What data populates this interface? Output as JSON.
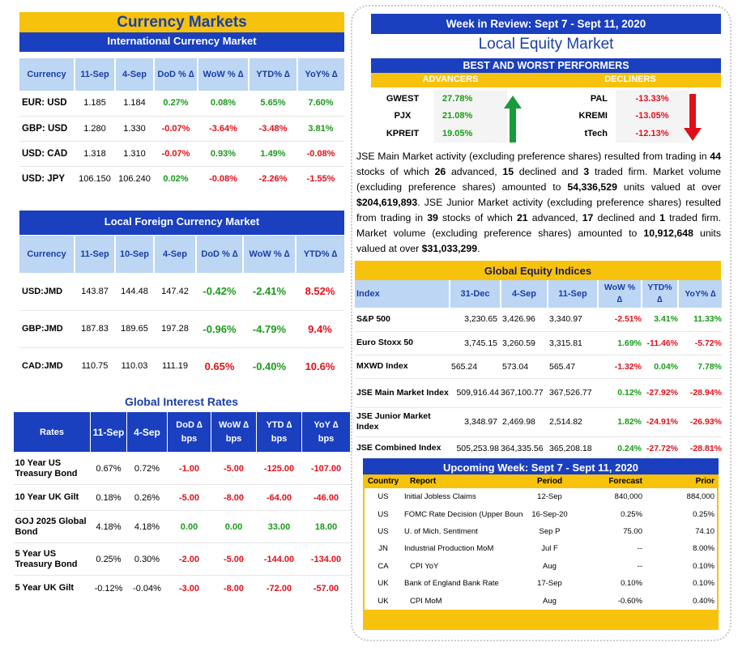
{
  "currency_markets": {
    "title": "Currency Markets",
    "international": {
      "title": "International Currency Market",
      "headers": [
        "Currency",
        "11-Sep",
        "4-Sep",
        "DoD % ∆",
        "WoW % ∆",
        "YTD% ∆",
        "YoY% ∆"
      ],
      "rows": [
        [
          "EUR: USD",
          "1.185",
          "1.184",
          "0.27%",
          "0.08%",
          "5.65%",
          "7.60%"
        ],
        [
          "GBP: USD",
          "1.280",
          "1.330",
          "-0.07%",
          "-3.64%",
          "-3.48%",
          "3.81%"
        ],
        [
          "USD: CAD",
          "1.318",
          "1.310",
          "-0.07%",
          "0.93%",
          "1.49%",
          "-0.08%"
        ],
        [
          "USD: JPY",
          "106.150",
          "106.240",
          "0.02%",
          "-0.08%",
          "-2.26%",
          "-1.55%"
        ]
      ]
    },
    "local_fx": {
      "title": "Local Foreign Currency Market",
      "headers": [
        "Currency",
        "11-Sep",
        "10-Sep",
        "4-Sep",
        "DoD % ∆",
        "WoW % ∆",
        "YTD% ∆"
      ],
      "rows": [
        [
          "USD:JMD",
          "143.87",
          "144.48",
          "147.42",
          "-0.42%",
          "-2.41%",
          "8.52%"
        ],
        [
          "GBP:JMD",
          "187.83",
          "189.65",
          "197.28",
          "-0.96%",
          "-4.79%",
          "9.4%"
        ],
        [
          "CAD:JMD",
          "110.75",
          "110.03",
          "111.19",
          "0.65%",
          "-0.40%",
          "10.6%"
        ]
      ]
    }
  },
  "interest_rates": {
    "title": "Global Interest Rates",
    "headers": [
      "Rates",
      "11-Sep",
      "4-Sep",
      "DoD ∆ bps",
      "WoW ∆ bps",
      "YTD ∆ bps",
      "YoY ∆ bps"
    ],
    "rows": [
      [
        "10 Year US Treasury Bond",
        "0.67%",
        "0.72%",
        "-1.00",
        "-5.00",
        "-125.00",
        "-107.00"
      ],
      [
        "10 Year UK Gilt",
        "0.18%",
        "0.26%",
        "-5.00",
        "-8.00",
        "-64.00",
        "-46.00"
      ],
      [
        "GOJ 2025 Global Bond",
        "4.18%",
        "4.18%",
        "0.00",
        "0.00",
        "33.00",
        "18.00"
      ],
      [
        "5 Year US Treasury Bond",
        "0.25%",
        "0.30%",
        "-2.00",
        "-5.00",
        "-144.00",
        "-134.00"
      ],
      [
        "5 Year UK Gilt",
        "-0.12%",
        "-0.04%",
        "-3.00",
        "-8.00",
        "-72.00",
        "-57.00"
      ]
    ]
  },
  "week_review": {
    "title": "Week in Review:  Sept 7 - Sept 11, 2020",
    "local_equity_title": "Local Equity Market",
    "performers_title": "BEST AND WORST PERFORMERS",
    "advancers_label": "ADVANCERS",
    "decliners_label": "DECLINERS",
    "performers": [
      {
        "adv": "GWEST",
        "adv_pct": "27.78%",
        "dec": "PAL",
        "dec_pct": "-13.33%"
      },
      {
        "adv": "PJX",
        "adv_pct": "21.08%",
        "dec": "KREMI",
        "dec_pct": "-13.05%"
      },
      {
        "adv": "KPREIT",
        "adv_pct": "19.05%",
        "dec": "tTech",
        "dec_pct": "-12.13%"
      }
    ],
    "summary": {
      "p1": "JSE Main Market activity (excluding preference shares) resulted from trading in ",
      "n_stocks_main": "44",
      "p2": " stocks of which ",
      "adv_main": "26",
      "p3": " advanced, ",
      "dec_main": "15",
      "p4": " declined and ",
      "firm_main": "3",
      "p5": " traded firm. Market volume (excluding preference shares) amounted to ",
      "vol_main": "54,336,529",
      "p6": " units valued at over ",
      "val_main": "$204,619,893",
      "p7": ". JSE Junior Market activity (excluding preference shares) resulted from trading in ",
      "n_stocks_jr": "39",
      "p8": " stocks of which ",
      "adv_jr": "21",
      "p9": " advanced, ",
      "dec_jr": "17",
      "p10": " declined and ",
      "firm_jr": "1",
      "p11": " traded firm. Market volume (excluding preference shares) amounted to ",
      "vol_jr": "10,912,648",
      "p12": " units valued at over ",
      "val_jr": "$31,033,299",
      "p13": "."
    }
  },
  "global_indices": {
    "title": "Global Equity Indices",
    "headers": [
      "Index",
      "31-Dec",
      "4-Sep",
      "11-Sep",
      "WoW % ∆",
      "YTD% ∆",
      "YoY% ∆"
    ],
    "rows": [
      [
        "S&P 500",
        "3,230.65",
        "3,426.96",
        "3,340.97",
        "-2.51%",
        "3.41%",
        "11.33%"
      ],
      [
        "Euro Stoxx 50",
        "3,745.15",
        "3,260.59",
        "3,315.81",
        "1.69%",
        "-11.46%",
        "-5.72%"
      ],
      [
        "MXWD  Index",
        "565.24",
        "573.04",
        "565.47",
        "-1.32%",
        "0.04%",
        "7.78%"
      ],
      [
        "JSE Main Market Index",
        "509,916.44",
        "367,100.77",
        "367,526.77",
        "0.12%",
        "-27.92%",
        "-28.94%"
      ],
      [
        "JSE Junior Market Index",
        "3,348.97",
        "2,469.98",
        "2,514.82",
        "1.82%",
        "-24.91%",
        "-26.93%"
      ],
      [
        "JSE Combined Index",
        "505,253.98",
        "364,335.56",
        "365,208.18",
        "0.24%",
        "-27.72%",
        "-28.81%"
      ]
    ]
  },
  "upcoming": {
    "title": "Upcoming Week:  Sept 7 - Sept 11, 2020",
    "headers": [
      "Country",
      "Report",
      "Period",
      "Forecast",
      "Prior"
    ],
    "rows": [
      [
        "US",
        "Initial Jobless Claims",
        "12-Sep",
        "840,000",
        "884,000"
      ],
      [
        "US",
        "FOMC Rate Decision (Upper Bound)",
        "16-Sep-20",
        "0.25%",
        "0.25%"
      ],
      [
        "US",
        "U. of Mich. Sentiment",
        "Sep P",
        "75.00",
        "74.10"
      ],
      [
        "JN",
        "Industrial Production MoM",
        "Jul F",
        "--",
        "8.00%"
      ],
      [
        "CA",
        "CPI YoY",
        "Aug",
        "--",
        "0.10%"
      ],
      [
        "UK",
        "Bank of England Bank Rate",
        "17-Sep",
        "0.10%",
        "0.10%"
      ],
      [
        "UK",
        "CPI MoM",
        "Aug",
        "-0.60%",
        "0.40%"
      ]
    ]
  },
  "colors": {
    "blue": "#1a3fbf",
    "yellow": "#f7c20b",
    "green": "#1a9a1a",
    "red": "#e0101a",
    "light_blue": "#bcd6f3"
  },
  "icons": [
    "arrow-up-icon",
    "arrow-down-icon"
  ]
}
